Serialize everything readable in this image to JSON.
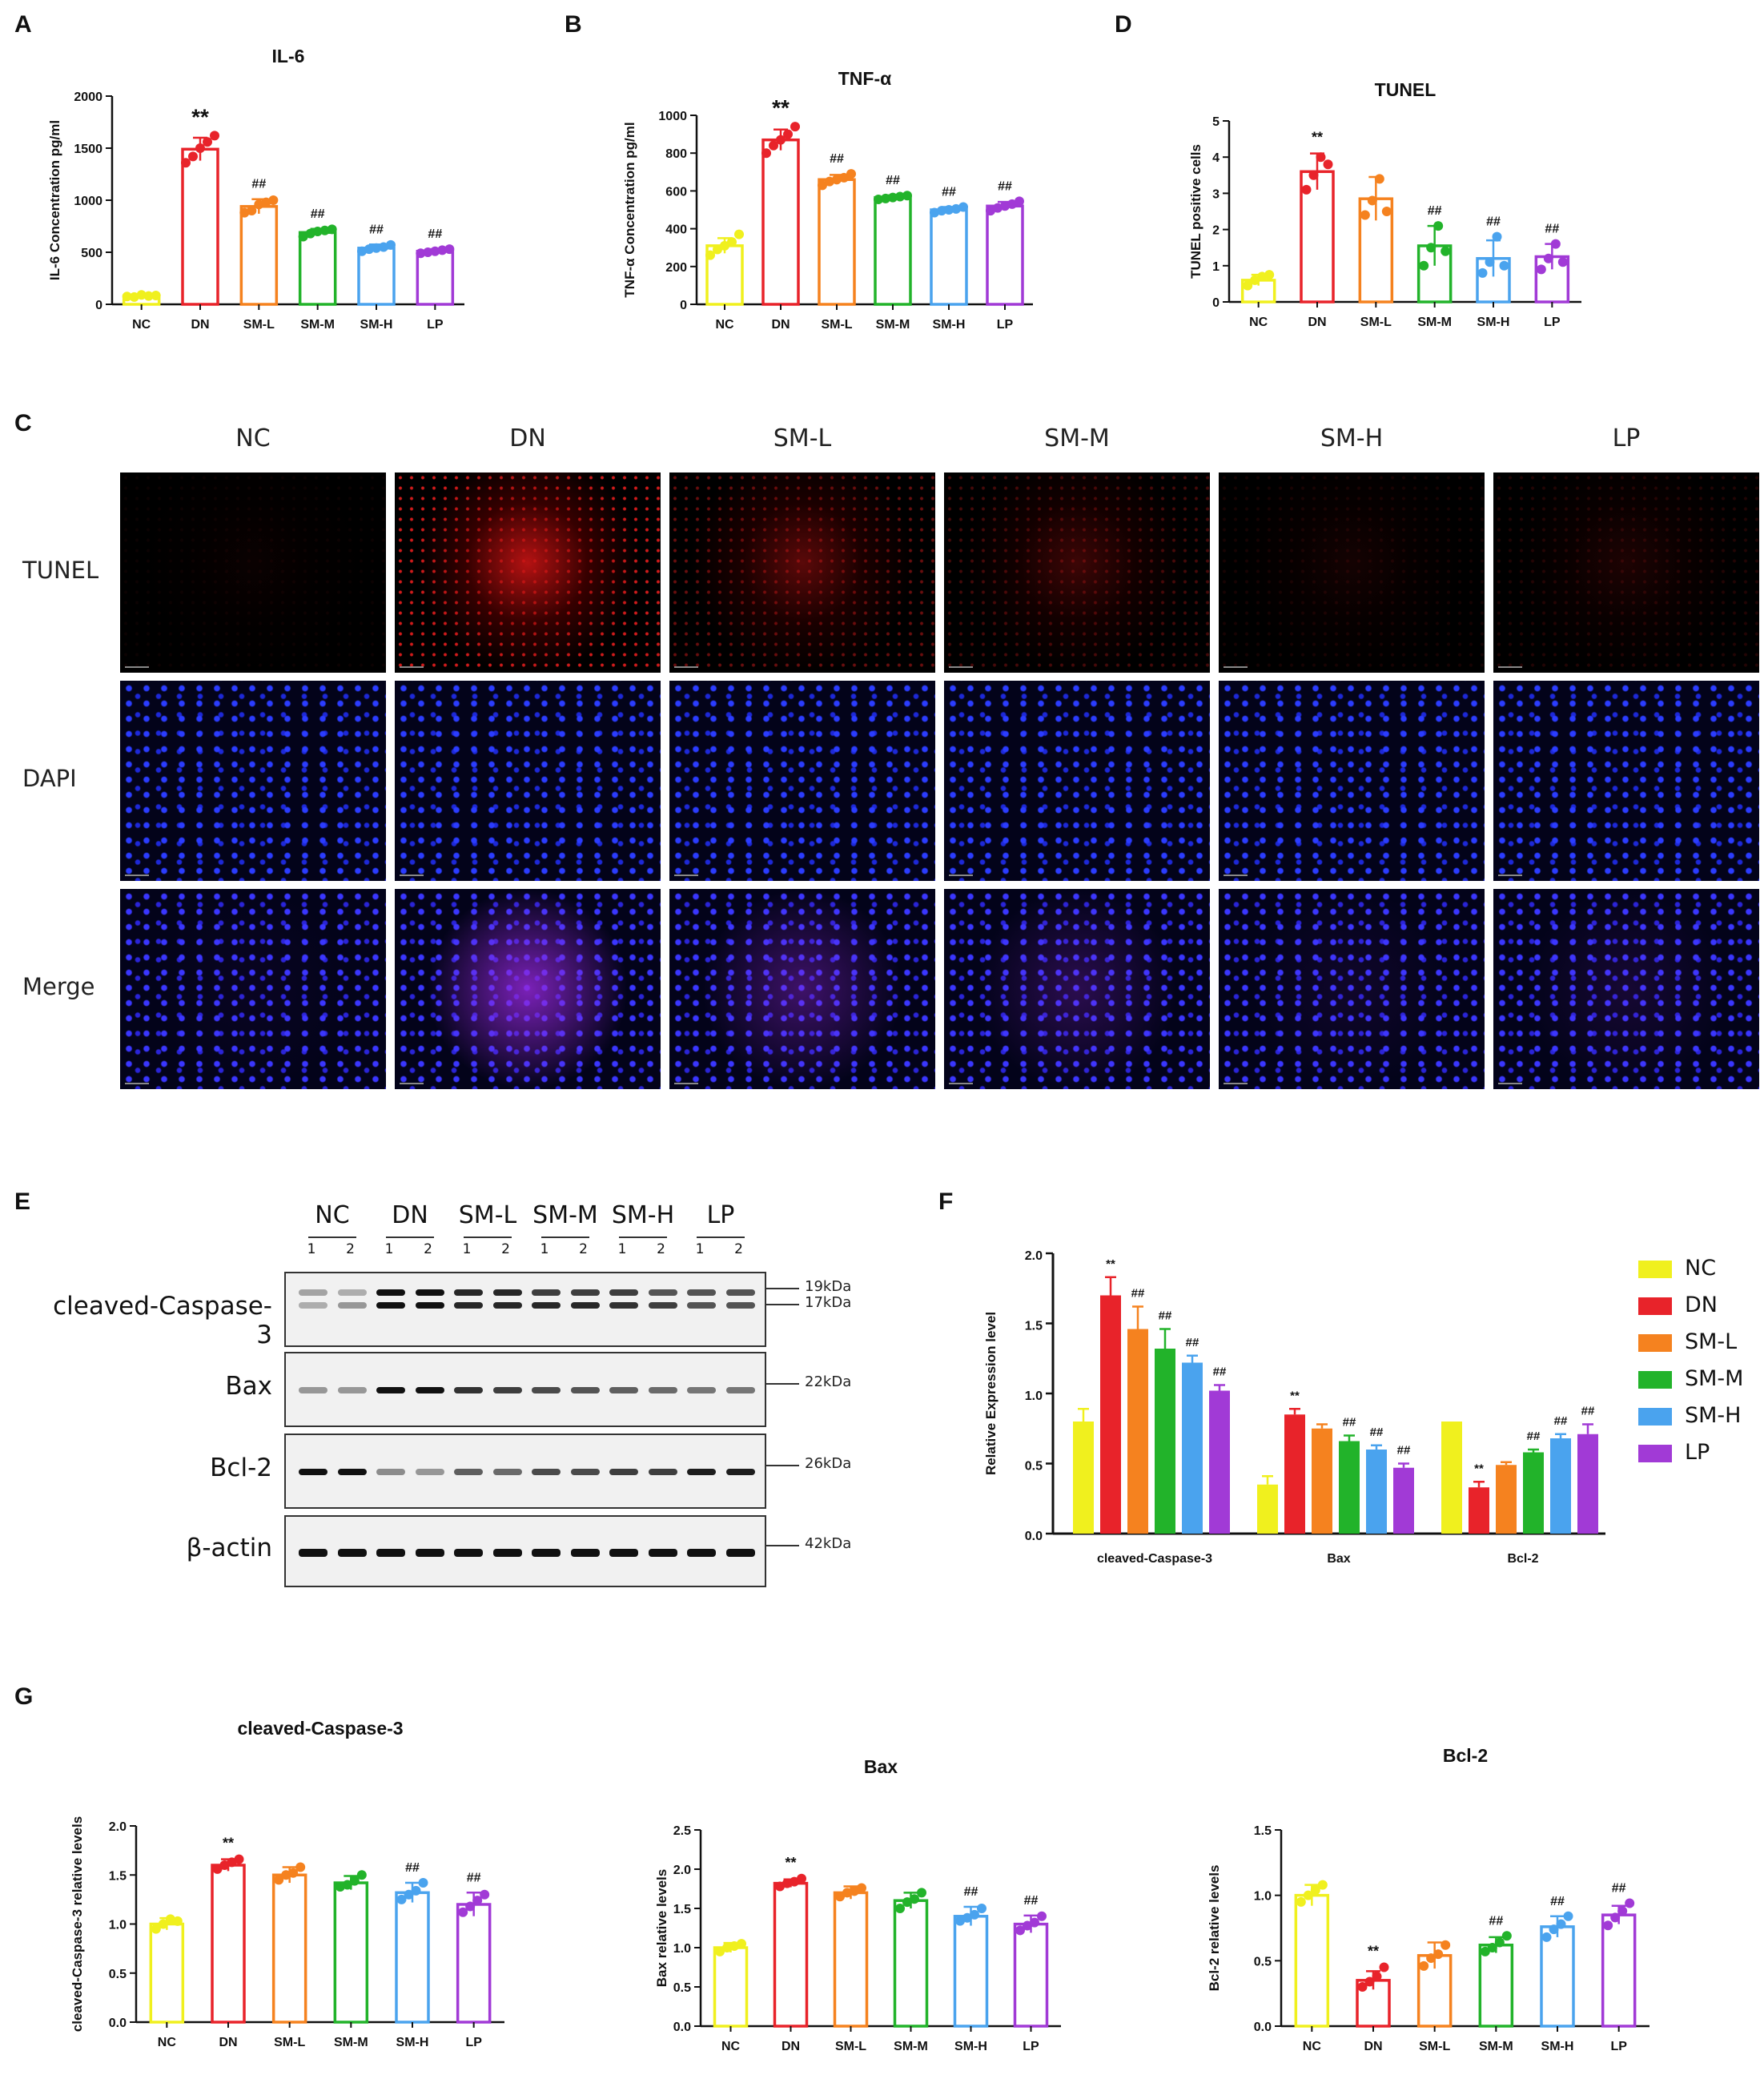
{
  "panels": {
    "a": "A",
    "b": "B",
    "c": "C",
    "d": "D",
    "e": "E",
    "f": "F",
    "g": "G"
  },
  "group_colors": {
    "NC": "#f0f01e",
    "DN": "#e8232a",
    "SM-L": "#f5821f",
    "SM-M": "#22b32a",
    "SM-H": "#4aa3ee",
    "LP": "#a13ad6"
  },
  "micrographs": {
    "columns": [
      "NC",
      "DN",
      "SM-L",
      "SM-M",
      "SM-H",
      "LP"
    ],
    "rows": [
      "TUNEL",
      "DAPI",
      "Merge"
    ],
    "red_intensity": [
      0.05,
      0.9,
      0.45,
      0.3,
      0.1,
      0.15
    ]
  },
  "western_blot": {
    "groups": [
      "NC",
      "DN",
      "SM-L",
      "SM-M",
      "SM-H",
      "LP"
    ],
    "lanes": [
      "1",
      "2",
      "1",
      "2",
      "1",
      "2",
      "1",
      "2",
      "1",
      "2",
      "1",
      "2"
    ],
    "proteins": [
      {
        "name": "cleaved-Caspase-3",
        "markers": [
          "19kDa",
          "17kDa"
        ]
      },
      {
        "name": "Bax",
        "markers": [
          "22kDa"
        ]
      },
      {
        "name": "Bcl-2",
        "markers": [
          "26kDa"
        ]
      },
      {
        "name": "β-actin",
        "markers": [
          "42kDa"
        ]
      }
    ]
  },
  "chart_data": [
    {
      "id": "A",
      "type": "bar",
      "title": "IL-6",
      "xlabel": "",
      "ylabel": "IL-6 Concentration pg/ml",
      "categories": [
        "NC",
        "DN",
        "SM-L",
        "SM-M",
        "SM-H",
        "LP"
      ],
      "values": [
        80,
        1490,
        940,
        690,
        540,
        510
      ],
      "errors": [
        15,
        110,
        70,
        35,
        35,
        20
      ],
      "points": [
        [
          75,
          70,
          90,
          80,
          85
        ],
        [
          1360,
          1420,
          1500,
          1560,
          1620
        ],
        [
          880,
          900,
          960,
          980,
          1000
        ],
        [
          650,
          680,
          700,
          710,
          720
        ],
        [
          510,
          530,
          540,
          550,
          570
        ],
        [
          490,
          500,
          510,
          520,
          530
        ]
      ],
      "ylim": [
        0,
        2000
      ],
      "yticks": [
        0,
        500,
        1000,
        1500,
        2000
      ],
      "annotations": [
        "",
        "**",
        "##",
        "##",
        "##",
        "##"
      ]
    },
    {
      "id": "B",
      "type": "bar",
      "title": "TNF-α",
      "xlabel": "",
      "ylabel": "TNF-α Concentration pg/ml",
      "categories": [
        "NC",
        "DN",
        "SM-L",
        "SM-M",
        "SM-H",
        "LP"
      ],
      "values": [
        310,
        870,
        660,
        565,
        500,
        520
      ],
      "errors": [
        40,
        55,
        25,
        12,
        15,
        22
      ],
      "points": [
        [
          260,
          290,
          310,
          330,
          370
        ],
        [
          800,
          840,
          870,
          900,
          940
        ],
        [
          630,
          650,
          660,
          670,
          690
        ],
        [
          555,
          560,
          565,
          570,
          575
        ],
        [
          485,
          495,
          500,
          505,
          515
        ],
        [
          495,
          510,
          520,
          530,
          545
        ]
      ],
      "ylim": [
        0,
        1000
      ],
      "yticks": [
        0,
        200,
        400,
        600,
        800,
        1000
      ],
      "annotations": [
        "",
        "**",
        "##",
        "##",
        "##",
        "##"
      ]
    },
    {
      "id": "D",
      "type": "bar",
      "title": "TUNEL",
      "xlabel": "",
      "ylabel": "TUNEL positive cells",
      "categories": [
        "NC",
        "DN",
        "SM-L",
        "SM-M",
        "SM-H",
        "LP"
      ],
      "values": [
        0.6,
        3.6,
        2.85,
        1.55,
        1.2,
        1.25
      ],
      "errors": [
        0.15,
        0.5,
        0.6,
        0.55,
        0.5,
        0.35
      ],
      "points": [
        [
          0.45,
          0.6,
          0.7,
          0.75
        ],
        [
          3.1,
          3.5,
          4.0,
          3.8
        ],
        [
          2.4,
          2.8,
          3.4,
          2.5
        ],
        [
          1.0,
          1.5,
          2.1,
          1.4
        ],
        [
          0.8,
          1.1,
          1.8,
          1.0
        ],
        [
          0.9,
          1.2,
          1.6,
          1.1
        ]
      ],
      "ylim": [
        0,
        5
      ],
      "yticks": [
        0,
        1,
        2,
        3,
        4,
        5
      ],
      "annotations": [
        "",
        "**",
        "",
        "##",
        "##",
        "##"
      ]
    },
    {
      "id": "F",
      "type": "bar",
      "title": "",
      "xlabel": "",
      "ylabel": "Relative Expression level",
      "categories": [
        "cleaved-Caspase-3",
        "Bax",
        "Bcl-2"
      ],
      "series": [
        {
          "name": "NC",
          "values": [
            0.8,
            0.35,
            0.8
          ],
          "errors": [
            0.09,
            0.06,
            0.0
          ],
          "annotations": [
            "",
            "",
            ""
          ]
        },
        {
          "name": "DN",
          "values": [
            1.7,
            0.85,
            0.33
          ],
          "errors": [
            0.13,
            0.04,
            0.04
          ],
          "annotations": [
            "**",
            "**",
            "**"
          ]
        },
        {
          "name": "SM-L",
          "values": [
            1.46,
            0.75,
            0.49
          ],
          "errors": [
            0.16,
            0.03,
            0.02
          ],
          "annotations": [
            "##",
            "",
            ""
          ]
        },
        {
          "name": "SM-M",
          "values": [
            1.32,
            0.66,
            0.58
          ],
          "errors": [
            0.14,
            0.04,
            0.02
          ],
          "annotations": [
            "##",
            "##",
            "##"
          ]
        },
        {
          "name": "SM-H",
          "values": [
            1.22,
            0.6,
            0.68
          ],
          "errors": [
            0.05,
            0.03,
            0.03
          ],
          "annotations": [
            "##",
            "##",
            "##"
          ]
        },
        {
          "name": "LP",
          "values": [
            1.02,
            0.47,
            0.71
          ],
          "errors": [
            0.04,
            0.03,
            0.07
          ],
          "annotations": [
            "##",
            "##",
            "##"
          ]
        }
      ],
      "ylim": [
        0,
        2.0
      ],
      "yticks": [
        "0.0",
        "0.5",
        "1.0",
        "1.5",
        "2.0"
      ]
    },
    {
      "id": "G1",
      "type": "bar",
      "title": "cleaved-Caspase-3",
      "xlabel": "",
      "ylabel": "cleaved-Caspase-3 relative levels",
      "categories": [
        "NC",
        "DN",
        "SM-L",
        "SM-M",
        "SM-H",
        "LP"
      ],
      "values": [
        1.0,
        1.6,
        1.5,
        1.42,
        1.32,
        1.2
      ],
      "errors": [
        0.06,
        0.06,
        0.08,
        0.07,
        0.1,
        0.12
      ],
      "points": [
        [
          0.95,
          1.0,
          1.05,
          1.03
        ],
        [
          1.56,
          1.6,
          1.63,
          1.66
        ],
        [
          1.45,
          1.5,
          1.52,
          1.58
        ],
        [
          1.38,
          1.4,
          1.44,
          1.5
        ],
        [
          1.25,
          1.3,
          1.34,
          1.42
        ],
        [
          1.12,
          1.18,
          1.24,
          1.3
        ]
      ],
      "ylim": [
        0,
        2.0
      ],
      "yticks": [
        "0.0",
        "0.5",
        "1.0",
        "1.5",
        "2.0"
      ],
      "annotations": [
        "",
        "**",
        "",
        "",
        "##",
        "##"
      ]
    },
    {
      "id": "G2",
      "type": "bar",
      "title": "Bax",
      "xlabel": "",
      "ylabel": "Bax relative levels",
      "categories": [
        "NC",
        "DN",
        "SM-L",
        "SM-M",
        "SM-H",
        "LP"
      ],
      "values": [
        1.0,
        1.82,
        1.7,
        1.6,
        1.4,
        1.3
      ],
      "errors": [
        0.06,
        0.05,
        0.08,
        0.1,
        0.12,
        0.11
      ],
      "points": [
        [
          0.95,
          1.0,
          1.02,
          1.05
        ],
        [
          1.78,
          1.82,
          1.84,
          1.88
        ],
        [
          1.65,
          1.7,
          1.72,
          1.76
        ],
        [
          1.5,
          1.58,
          1.62,
          1.7
        ],
        [
          1.34,
          1.38,
          1.42,
          1.5
        ],
        [
          1.22,
          1.28,
          1.32,
          1.4
        ]
      ],
      "ylim": [
        0,
        2.5
      ],
      "yticks": [
        "0.0",
        "0.5",
        "1.0",
        "1.5",
        "2.0",
        "2.5"
      ],
      "annotations": [
        "",
        "**",
        "",
        "",
        "##",
        "##"
      ]
    },
    {
      "id": "G3",
      "type": "bar",
      "title": "Bcl-2",
      "xlabel": "",
      "ylabel": "Bcl-2 relative levels",
      "categories": [
        "NC",
        "DN",
        "SM-L",
        "SM-M",
        "SM-H",
        "LP"
      ],
      "values": [
        1.0,
        0.35,
        0.54,
        0.62,
        0.76,
        0.85
      ],
      "errors": [
        0.08,
        0.07,
        0.1,
        0.06,
        0.08,
        0.07
      ],
      "points": [
        [
          0.95,
          1.0,
          1.04,
          1.08
        ],
        [
          0.3,
          0.34,
          0.38,
          0.45
        ],
        [
          0.46,
          0.52,
          0.55,
          0.62
        ],
        [
          0.57,
          0.6,
          0.64,
          0.69
        ],
        [
          0.68,
          0.74,
          0.78,
          0.84
        ],
        [
          0.77,
          0.83,
          0.88,
          0.94
        ]
      ],
      "ylim": [
        0,
        1.5
      ],
      "yticks": [
        "0.0",
        "0.5",
        "1.0",
        "1.5"
      ],
      "annotations": [
        "",
        "**",
        "",
        "##",
        "##",
        "##"
      ]
    }
  ]
}
